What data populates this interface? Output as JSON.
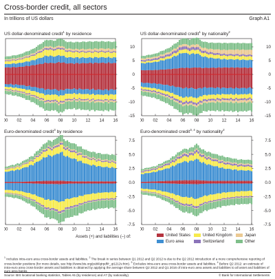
{
  "header": {
    "title": "Cross-border credit, all sectors",
    "subtitle": "In trillions of US dollars",
    "graph_id": "Graph A1"
  },
  "colors": {
    "united_states": "#b5343f",
    "euro_area": "#3f8fd2",
    "united_kingdom": "#f6ea4c",
    "switzerland": "#8b73b9",
    "japan": "#ebc992",
    "other": "#7fbf8a"
  },
  "chart_data": [
    {
      "type": "area",
      "title": "US dollar-denominated credit",
      "title_note": "1",
      "title_suffix": "by residence",
      "title_note2": "",
      "x_ticks": [
        "00",
        "02",
        "04",
        "06",
        "08",
        "10",
        "12",
        "14",
        "16"
      ],
      "y_ticks": [
        10,
        5,
        0,
        -5,
        -10,
        -15
      ],
      "ylim": [
        -15,
        13
      ],
      "years": [
        2000,
        2002,
        2004,
        2006,
        2008,
        2010,
        2012,
        2014,
        2016
      ],
      "stacked": true,
      "series": [
        {
          "name": "United States",
          "assets": [
            2.5,
            2.7,
            3.3,
            4.2,
            4.0,
            4.0,
            4.1,
            4.2,
            4.1
          ],
          "liabilities": [
            -3.5,
            -3.8,
            -4.5,
            -5.5,
            -5.3,
            -5.3,
            -5.4,
            -5.6,
            -5.5
          ]
        },
        {
          "name": "Euro area",
          "assets": [
            1.2,
            1.4,
            1.8,
            2.6,
            2.3,
            2.1,
            2.0,
            2.0,
            2.0
          ],
          "liabilities": [
            -1.0,
            -1.2,
            -1.5,
            -2.0,
            -1.8,
            -1.7,
            -1.8,
            -1.8,
            -1.8
          ]
        },
        {
          "name": "United Kingdom",
          "assets": [
            1.0,
            1.2,
            1.6,
            2.3,
            2.1,
            2.0,
            1.9,
            1.9,
            1.8
          ],
          "liabilities": [
            -0.8,
            -1.0,
            -1.4,
            -2.0,
            -1.9,
            -1.8,
            -1.8,
            -1.8,
            -1.8
          ]
        },
        {
          "name": "Switzerland",
          "assets": [
            0.3,
            0.3,
            0.4,
            0.6,
            0.5,
            0.4,
            0.4,
            0.4,
            0.4
          ],
          "liabilities": [
            -0.3,
            -0.3,
            -0.4,
            -0.5,
            -0.5,
            -0.4,
            -0.4,
            -0.4,
            -0.4
          ]
        },
        {
          "name": "Japan",
          "assets": [
            0.4,
            0.4,
            0.5,
            0.6,
            0.6,
            0.7,
            0.8,
            0.9,
            0.9
          ],
          "liabilities": [
            -0.3,
            -0.3,
            -0.4,
            -0.5,
            -0.5,
            -0.5,
            -0.6,
            -0.6,
            -0.6
          ]
        },
        {
          "name": "Other",
          "assets": [
            1.0,
            1.2,
            1.6,
            2.3,
            2.4,
            2.5,
            2.7,
            2.6,
            2.6
          ],
          "liabilities": [
            -1.2,
            -1.4,
            -1.9,
            -2.8,
            -2.7,
            -2.8,
            -3.0,
            -3.0,
            -2.9
          ]
        }
      ]
    },
    {
      "type": "area",
      "title": "US dollar-denominated credit",
      "title_note": "1",
      "title_suffix": "by nationality",
      "title_note2": "2",
      "x_ticks": [
        "00",
        "02",
        "04",
        "06",
        "08",
        "10",
        "12",
        "14",
        "16"
      ],
      "y_ticks": [
        10,
        5,
        0,
        -5,
        -10,
        -15
      ],
      "ylim": [
        -15,
        13
      ],
      "years": [
        2000,
        2002,
        2004,
        2006,
        2008,
        2010,
        2012,
        2014,
        2016
      ],
      "stacked": true,
      "series": [
        {
          "name": "United States",
          "assets": [
            1.5,
            1.6,
            1.9,
            2.4,
            2.3,
            2.4,
            2.5,
            2.5,
            2.4
          ],
          "liabilities": [
            -3.0,
            -3.3,
            -4.0,
            -5.0,
            -4.8,
            -4.8,
            -4.9,
            -5.0,
            -4.9
          ]
        },
        {
          "name": "Euro area",
          "assets": [
            2.5,
            2.9,
            3.8,
            5.5,
            4.6,
            3.6,
            3.0,
            2.9,
            2.8
          ],
          "liabilities": [
            -1.5,
            -1.8,
            -2.4,
            -3.4,
            -3.0,
            -2.6,
            -2.3,
            -2.3,
            -2.2
          ]
        },
        {
          "name": "United Kingdom",
          "assets": [
            0.6,
            0.7,
            0.9,
            1.3,
            1.3,
            1.3,
            1.3,
            1.3,
            1.3
          ],
          "liabilities": [
            -0.8,
            -0.9,
            -1.2,
            -1.6,
            -1.6,
            -1.5,
            -1.5,
            -1.5,
            -1.5
          ]
        },
        {
          "name": "Switzerland",
          "assets": [
            0.5,
            0.6,
            0.8,
            1.1,
            0.9,
            0.7,
            0.6,
            0.6,
            0.6
          ],
          "liabilities": [
            -0.4,
            -0.5,
            -0.6,
            -0.8,
            -0.7,
            -0.6,
            -0.6,
            -0.6,
            -0.6
          ]
        },
        {
          "name": "Japan",
          "assets": [
            0.6,
            0.6,
            0.7,
            0.8,
            0.9,
            1.2,
            1.5,
            1.7,
            1.8
          ],
          "liabilities": [
            -0.4,
            -0.4,
            -0.5,
            -0.6,
            -0.6,
            -0.7,
            -0.8,
            -0.9,
            -0.9
          ]
        },
        {
          "name": "Other",
          "assets": [
            0.9,
            1.1,
            1.5,
            2.1,
            2.2,
            2.3,
            2.5,
            2.4,
            2.4
          ],
          "liabilities": [
            -1.5,
            -1.7,
            -2.2,
            -3.0,
            -3.0,
            -3.0,
            -3.2,
            -3.2,
            -3.1
          ]
        }
      ]
    },
    {
      "type": "area",
      "title": "Euro-denominated credit",
      "title_note": "3",
      "title_suffix": "by residence",
      "title_note2": "",
      "x_ticks": [
        "00",
        "02",
        "04",
        "06",
        "08",
        "10",
        "12",
        "14",
        "16"
      ],
      "y_ticks": [
        7.5,
        5.0,
        2.5,
        0.0,
        -2.5,
        -5.0,
        -7.5
      ],
      "ylim": [
        -7.5,
        8.2
      ],
      "years": [
        2000,
        2002,
        2004,
        2006,
        2008,
        2010,
        2012,
        2014,
        2016
      ],
      "stacked": true,
      "series": [
        {
          "name": "United States",
          "assets": [
            0.1,
            0.1,
            0.2,
            0.3,
            0.3,
            0.2,
            0.2,
            0.2,
            0.2
          ],
          "liabilities": [
            -0.1,
            -0.1,
            -0.2,
            -0.3,
            -0.3,
            -0.2,
            -0.2,
            -0.2,
            -0.2
          ]
        },
        {
          "name": "Euro area",
          "assets": [
            1.8,
            2.2,
            3.0,
            4.4,
            4.6,
            4.0,
            3.0,
            2.6,
            2.4
          ],
          "liabilities": [
            -1.2,
            -1.4,
            -1.9,
            -2.8,
            -2.9,
            -2.5,
            -1.9,
            -1.6,
            -1.5
          ]
        },
        {
          "name": "United Kingdom",
          "assets": [
            0.4,
            0.5,
            0.7,
            1.1,
            1.2,
            1.1,
            1.0,
            0.9,
            0.9
          ],
          "liabilities": [
            -0.5,
            -0.6,
            -0.9,
            -1.4,
            -1.5,
            -1.4,
            -1.2,
            -1.1,
            -1.1
          ]
        },
        {
          "name": "Switzerland",
          "assets": [
            0.1,
            0.1,
            0.2,
            0.3,
            0.3,
            0.3,
            0.2,
            0.2,
            0.2
          ],
          "liabilities": [
            -0.1,
            -0.1,
            -0.2,
            -0.3,
            -0.3,
            -0.3,
            -0.2,
            -0.2,
            -0.2
          ]
        },
        {
          "name": "Japan",
          "assets": [
            0.1,
            0.1,
            0.1,
            0.2,
            0.2,
            0.2,
            0.2,
            0.2,
            0.2
          ],
          "liabilities": [
            -0.1,
            -0.1,
            -0.1,
            -0.1,
            -0.1,
            -0.1,
            -0.1,
            -0.1,
            -0.1
          ]
        },
        {
          "name": "Other",
          "assets": [
            0.3,
            0.4,
            0.6,
            1.0,
            1.1,
            1.1,
            1.0,
            1.0,
            1.0
          ],
          "liabilities": [
            -0.5,
            -0.6,
            -0.9,
            -1.4,
            -1.5,
            -1.5,
            -1.4,
            -1.4,
            -1.4
          ]
        }
      ]
    },
    {
      "type": "area",
      "title": "Euro-denominated credit",
      "title_note": "3, 4",
      "title_suffix": "by nationality",
      "title_note2": "2",
      "x_ticks": [
        "00",
        "02",
        "04",
        "06",
        "08",
        "10",
        "12",
        "14",
        "16"
      ],
      "y_ticks": [
        7.5,
        5.0,
        2.5,
        0.0,
        -2.5,
        -5.0,
        -7.5
      ],
      "ylim": [
        -7.5,
        8.2
      ],
      "years": [
        2000,
        2002,
        2004,
        2006,
        2008,
        2010,
        2012,
        2014,
        2016
      ],
      "stacked": true,
      "series": [
        {
          "name": "United States",
          "assets": [
            0.1,
            0.2,
            0.3,
            0.4,
            0.4,
            0.3,
            0.3,
            0.3,
            0.3
          ],
          "liabilities": [
            -0.1,
            -0.1,
            -0.2,
            -0.3,
            -0.3,
            -0.2,
            -0.2,
            -0.2,
            -0.2
          ]
        },
        {
          "name": "Euro area",
          "assets": [
            1.4,
            1.7,
            2.3,
            3.3,
            3.4,
            2.8,
            2.2,
            1.9,
            1.8
          ],
          "liabilities": [
            -1.0,
            -1.2,
            -1.6,
            -2.3,
            -2.4,
            -2.0,
            -1.6,
            -1.4,
            -1.3
          ]
        },
        {
          "name": "United Kingdom",
          "assets": [
            0.3,
            0.4,
            0.6,
            0.9,
            1.0,
            0.9,
            0.8,
            0.7,
            0.7
          ],
          "liabilities": [
            -0.4,
            -0.5,
            -0.8,
            -1.2,
            -1.2,
            -1.1,
            -1.0,
            -0.9,
            -0.9
          ]
        },
        {
          "name": "Switzerland",
          "assets": [
            0.2,
            0.2,
            0.3,
            0.4,
            0.4,
            0.3,
            0.3,
            0.3,
            0.3
          ],
          "liabilities": [
            -0.1,
            -0.1,
            -0.2,
            -0.3,
            -0.3,
            -0.2,
            -0.2,
            -0.2,
            -0.2
          ]
        },
        {
          "name": "Japan",
          "assets": [
            0.1,
            0.1,
            0.1,
            0.2,
            0.2,
            0.2,
            0.2,
            0.2,
            0.2
          ],
          "liabilities": [
            -0.1,
            -0.1,
            -0.1,
            -0.1,
            -0.1,
            -0.1,
            -0.1,
            -0.1,
            -0.1
          ]
        },
        {
          "name": "Other",
          "assets": [
            0.3,
            0.3,
            0.5,
            0.7,
            0.8,
            0.8,
            0.8,
            0.7,
            0.7
          ],
          "liabilities": [
            -0.4,
            -0.5,
            -0.7,
            -1.1,
            -1.2,
            -1.2,
            -1.1,
            -1.1,
            -1.1
          ]
        }
      ]
    }
  ],
  "legend": {
    "caption": "Assets (+) and liabilities (–) of:",
    "items": [
      {
        "label": "United States",
        "color": "#b5343f"
      },
      {
        "label": "Euro area",
        "color": "#3f8fd2"
      },
      {
        "label": "United Kingdom",
        "color": "#f6ea4c"
      },
      {
        "label": "Switzerland",
        "color": "#8b73b9"
      },
      {
        "label": "Japan",
        "color": "#ebc992"
      },
      {
        "label": "Other",
        "color": "#7fbf8a"
      }
    ]
  },
  "footnotes": {
    "n1_mark": "1",
    "n1": " Includes intra-euro area cross-border assets and liabilities.",
    "n2_mark": "2",
    "n2": " The break in series between Q1 2012 and Q2 2012 is due to the Q2 2012 introduction of a more comprehensive reporting of cross-border positions (for more details, see http://www.bis.org/publ/qtrpdf/r_qt1212v.htm).",
    "n3_mark": "3",
    "n3": " Excludes intra-euro area cross-border assets and liabilities.",
    "n4_mark": "4",
    "n4": " Before Q2 2012: an estimate of intra-euro area cross-border assets and liabilities is obtained by applying the average share between Q2 2012 and Q1 2016 of intra-euro area assets and liabilities to all asset and liabilities of euro area banks.",
    "source": "Source: BIS locational banking statistics, Tables A5 (by residence) and A7 (by nationality).",
    "copyright": "© Bank for International Settlements"
  }
}
